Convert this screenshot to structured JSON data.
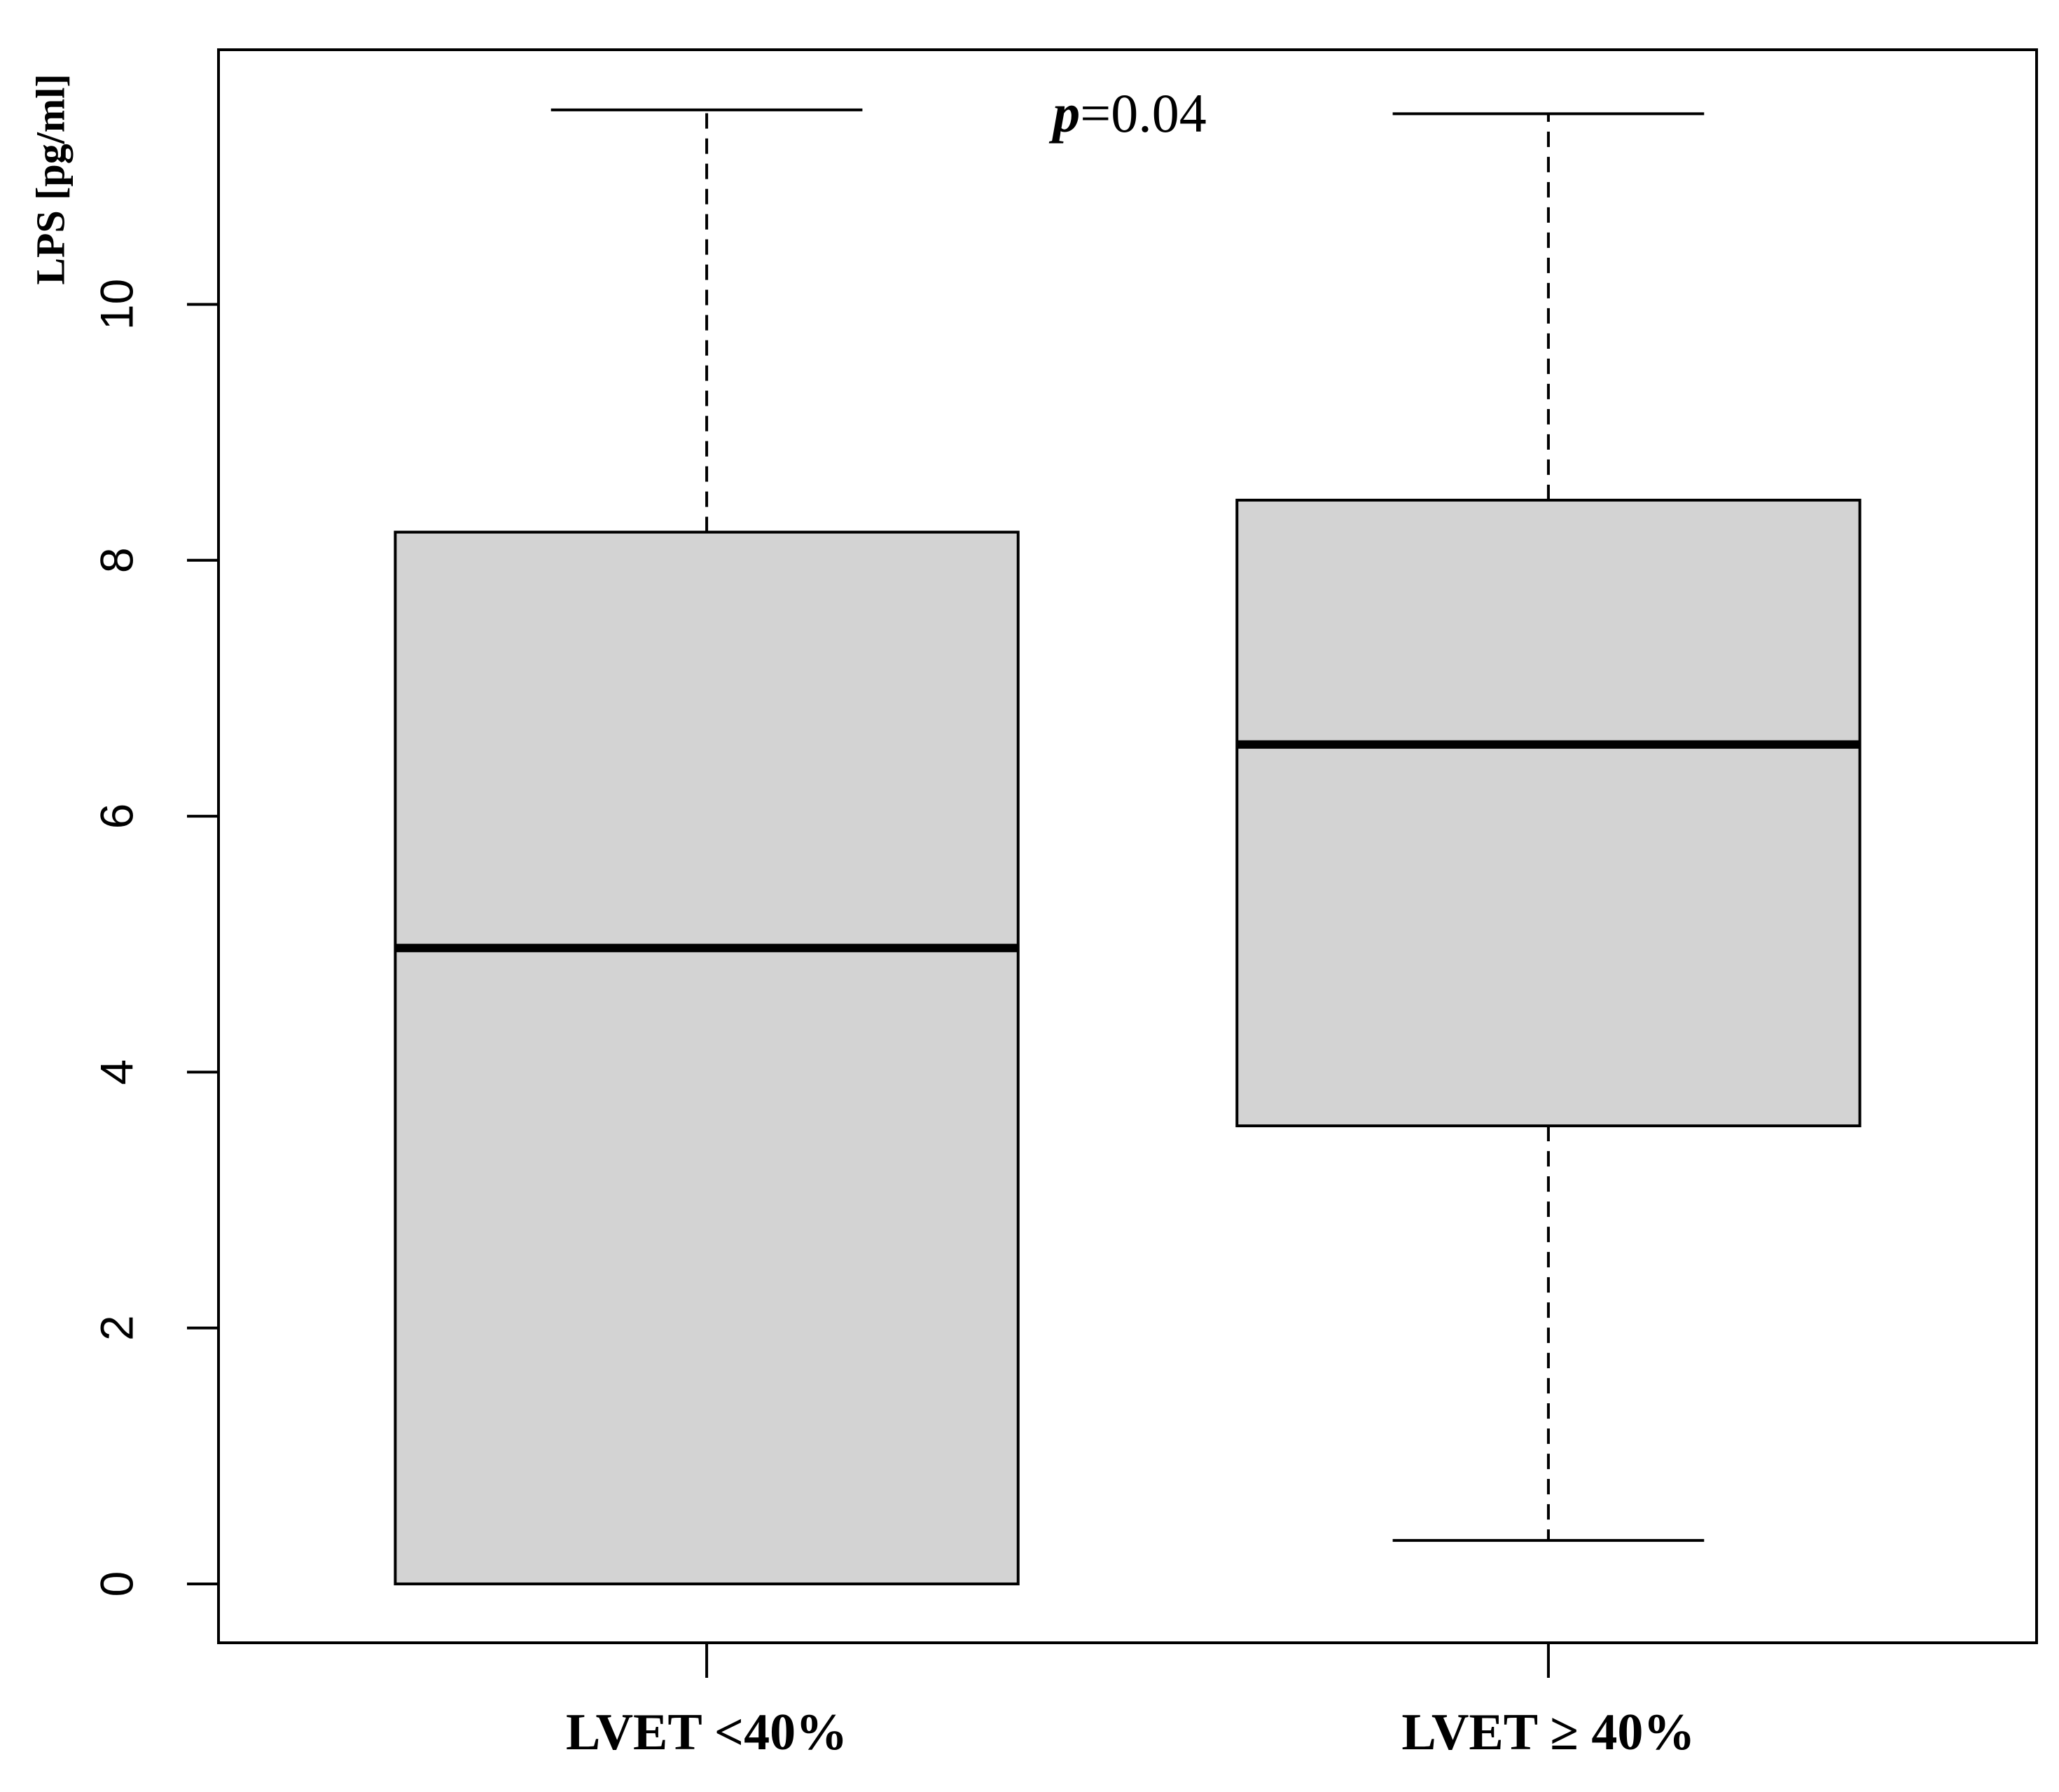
{
  "chart_data": {
    "type": "boxplot",
    "y_label": "LPS [pg/ml]",
    "annotation": {
      "variable": "p",
      "text": "=0.04"
    },
    "categories": [
      "LVET <40%",
      "LVET ≥ 40%"
    ],
    "series": [
      {
        "color": "#d3d3d3",
        "min": [
          0,
          0.34
        ],
        "q1": [
          0,
          3.58
        ],
        "median": [
          4.97,
          6.56
        ],
        "q3": [
          8.22,
          8.47
        ],
        "max": [
          11.52,
          11.49
        ]
      }
    ],
    "ylim": [
      -0.46,
      11.99
    ],
    "yticks": [
      0,
      2,
      4,
      6,
      8,
      10
    ]
  }
}
